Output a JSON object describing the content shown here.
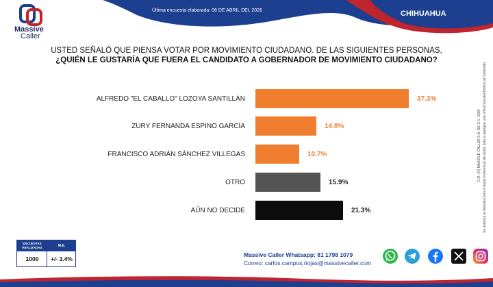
{
  "header": {
    "logo_line1": "Massive",
    "logo_line2": "Caller",
    "date_text": "Última encuesta elaborada: 06 DE ABRIL DEL 2026",
    "state": "CHIHUAHUA"
  },
  "question": {
    "line1": "USTED SEÑALÓ QUE PIENSA VOTAR POR MOVIMIENTO CIUDADANO. DE LAS SIGUIENTES PERSONAS,",
    "line2": "¿QUIÉN LE GUSTARÍA QUE FUERA EL CANDIDATO A GOBERNADOR DE MOVIMIENTO CIUDADANO?"
  },
  "chart_data": {
    "type": "bar",
    "orientation": "horizontal",
    "title": "¿QUIÉN LE GUSTARÍA QUE FUERA EL CANDIDATO A GOBERNADOR DE MOVIMIENTO CIUDADANO?",
    "categories": [
      "ALFREDO \"EL CABALLO\" LOZOYA SANTILLÁN",
      "ZURY FERNANDA ESPINO GARCÍA",
      "FRANCISCO ADRIÁN SÁNCHEZ VILLEGAS",
      "OTRO",
      "AÚN NO DECIDE"
    ],
    "values": [
      37.3,
      14.8,
      10.7,
      15.9,
      21.3
    ],
    "value_labels": [
      "37.3%",
      "14.8%",
      "10.7%",
      "15.9%",
      "21.3%"
    ],
    "colors": [
      "#ef7f2f",
      "#ef7f2f",
      "#ef7f2f",
      "#555555",
      "#0c0c0c"
    ],
    "label_colors": [
      "#ef7f2f",
      "#ef7f2f",
      "#ef7f2f",
      "#222222",
      "#222222"
    ],
    "xlim": [
      0,
      37.3
    ],
    "grid": false,
    "legend": "none"
  },
  "side_note": {
    "line1": "D.R. (C) MASSIVE CALLER S.A. DE C.V. 2025",
    "line2": "Se autoriza la reproducción si hacen referencia del autor, solo si agregue una referencia electrónica al contenido."
  },
  "stats": {
    "col1_header": "ENCUESTAS REALIZADAS",
    "col2_header": "M.E.",
    "col1_value": "1000",
    "col2_value": "+/- 3.4%"
  },
  "contact": {
    "whatsapp": "Massive Caller Whatsapp: 81 1798 1079",
    "email": "Correo: carlos.campos.riojas@massivecaller.com"
  },
  "social": [
    "whatsapp-icon",
    "telegram-icon",
    "facebook-icon",
    "x-icon",
    "instagram-icon"
  ],
  "colors": {
    "navy": "#1d3f8f",
    "red": "#c0242f",
    "orange": "#ef7f2f"
  }
}
